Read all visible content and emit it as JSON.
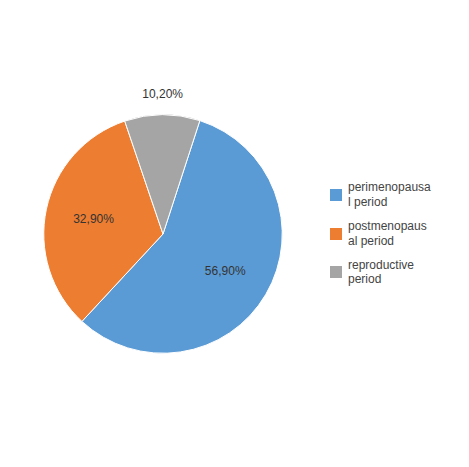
{
  "chart_data": {
    "type": "pie",
    "categories": [
      "perimenopausa\nl period",
      "postmenopaus\nal period",
      "reproductive\nperiod"
    ],
    "values": [
      56.9,
      32.9,
      10.2
    ],
    "value_labels": [
      "56,90%",
      "32,90%",
      "10,20%"
    ],
    "colors": [
      "#5B9BD5",
      "#ED7D31",
      "#A5A5A5"
    ],
    "data_labels": true,
    "legend": "right"
  }
}
